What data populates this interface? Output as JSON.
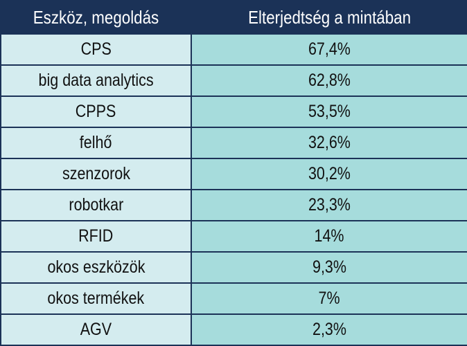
{
  "table": {
    "headers": [
      "Eszköz, megoldás",
      "Elterjedtség a mintában"
    ],
    "rows": [
      {
        "tool": "CPS",
        "share": "67,4%"
      },
      {
        "tool": "big data analytics",
        "share": "62,8%"
      },
      {
        "tool": "CPPS",
        "share": "53,5%"
      },
      {
        "tool": "felhő",
        "share": "32,6%"
      },
      {
        "tool": "szenzorok",
        "share": "30,2%"
      },
      {
        "tool": "robotkar",
        "share": "23,3%"
      },
      {
        "tool": "RFID",
        "share": "14%"
      },
      {
        "tool": "okos eszközök",
        "share": "9,3%"
      },
      {
        "tool": "okos termékek",
        "share": "7%"
      },
      {
        "tool": "AGV",
        "share": "2,3%"
      }
    ],
    "colors": {
      "header_bg": "#1b3257",
      "col1_bg": "#d4ecef",
      "col2_bg": "#a6dcdc"
    }
  }
}
